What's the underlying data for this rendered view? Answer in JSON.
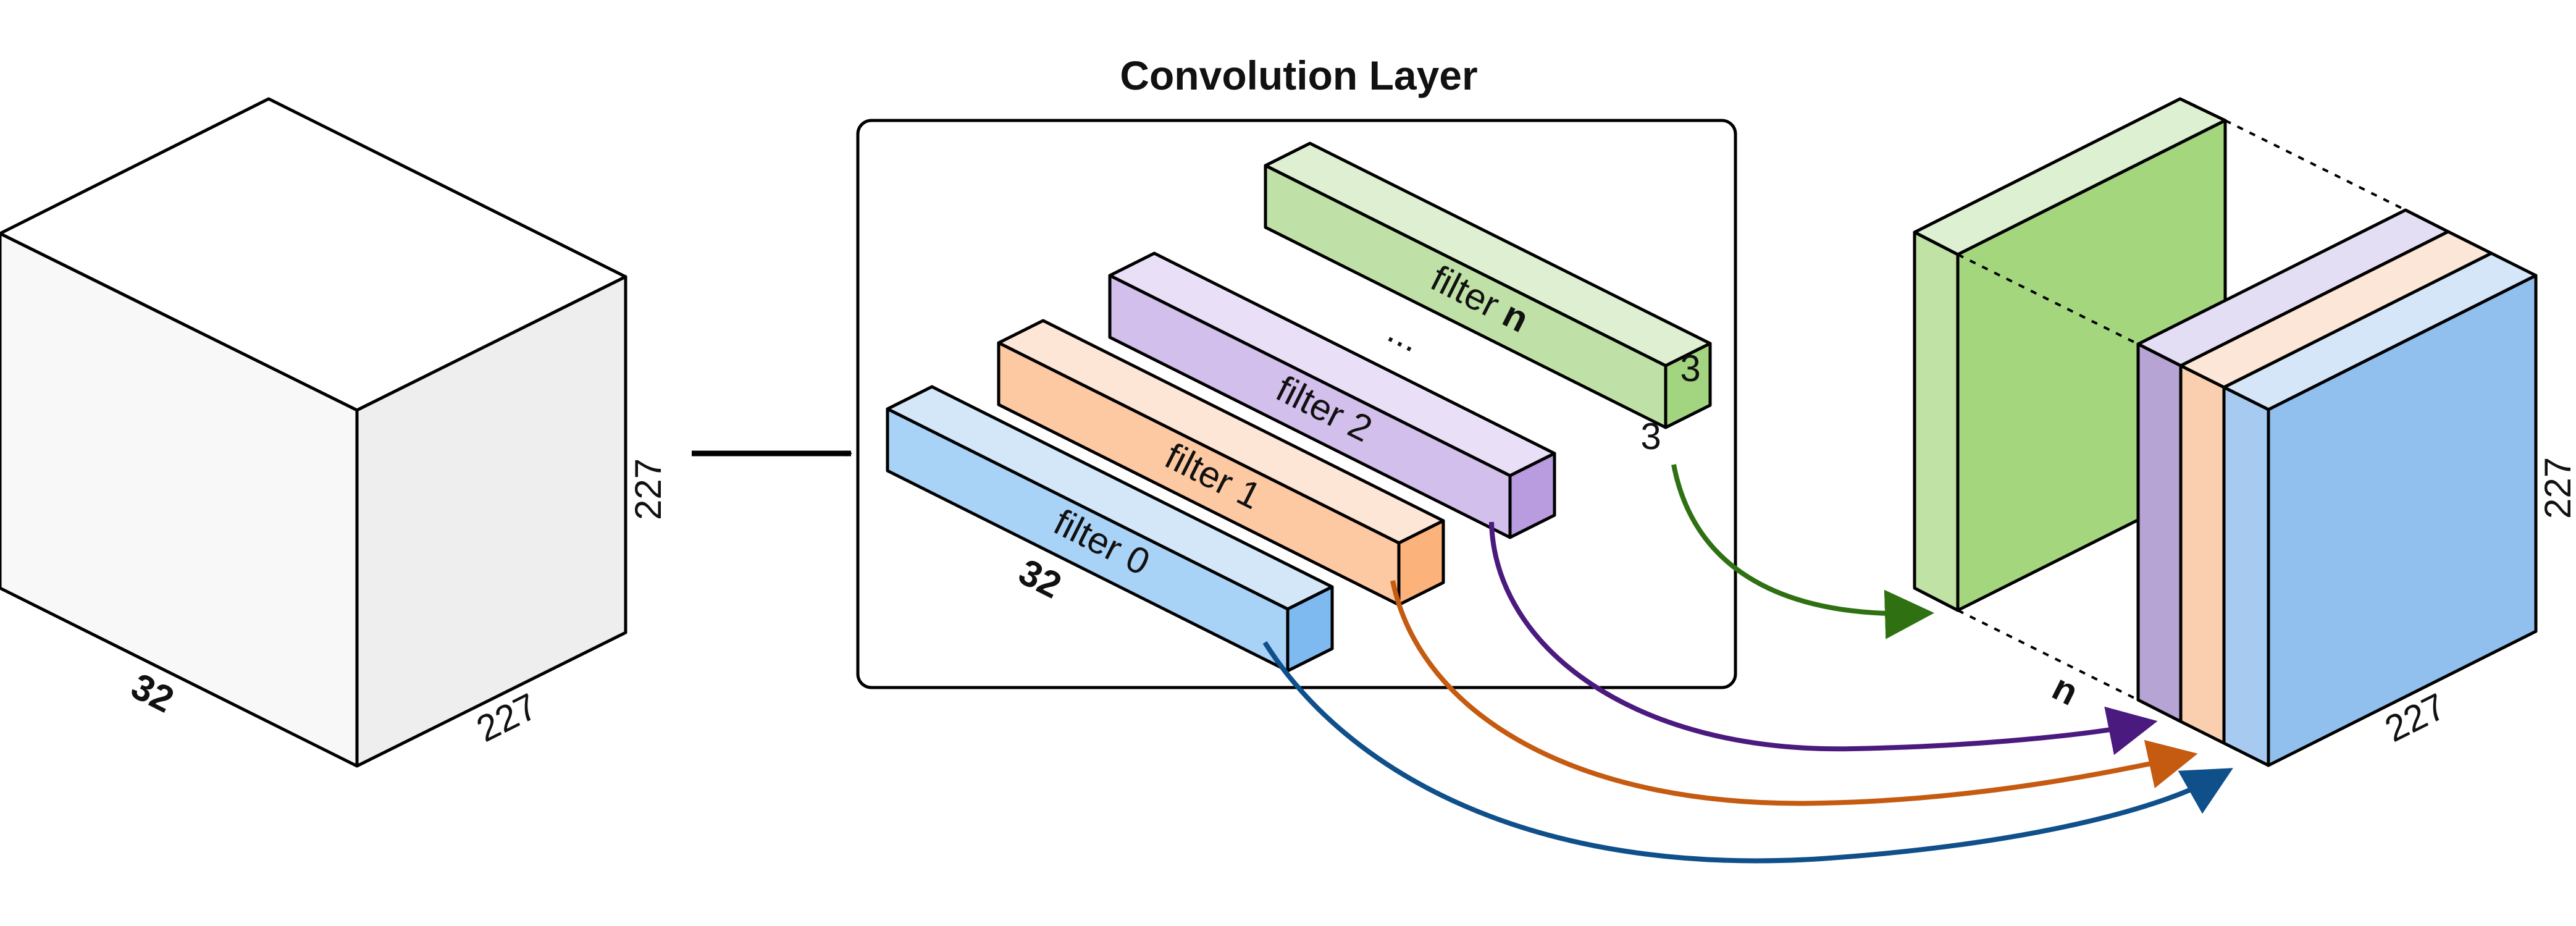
{
  "title": "Convolution Layer",
  "input_volume": {
    "depth_label": "32",
    "width_label": "227",
    "height_label": "227"
  },
  "filters": [
    {
      "label_prefix": "filter ",
      "label_suffix": "0",
      "suffix_bold": false,
      "color_front": "#a9d2f7",
      "color_top": "#d4e7f9",
      "color_end": "#7eb9ef",
      "arrow_color": "#0f4f8a"
    },
    {
      "label_prefix": "filter ",
      "label_suffix": "1",
      "suffix_bold": false,
      "color_front": "#fdc9a2",
      "color_top": "#fde6d5",
      "color_end": "#fcb27b",
      "arrow_color": "#c55a11"
    },
    {
      "label_prefix": "filter ",
      "label_suffix": "2",
      "suffix_bold": false,
      "color_front": "#d2bfec",
      "color_top": "#e9dff7",
      "color_end": "#b99bdf",
      "arrow_color": "#4b1a7e"
    },
    {
      "label_prefix": "filter ",
      "label_suffix": "n",
      "suffix_bold": true,
      "color_front": "#bfe0a6",
      "color_top": "#dff0d2",
      "color_end": "#a3d47f",
      "arrow_color": "#2e7012"
    }
  ],
  "filter_labels": {
    "depth": "32",
    "size_w": "3",
    "size_h": "3",
    "ellipsis": "..."
  },
  "output_volume": {
    "count_label": "n",
    "width_label": "227",
    "height_label": "227",
    "layer_colors": {
      "blue_front": "#92c0ee",
      "blue_top": "#d5e6f8",
      "blue_side": "#a7cbf0",
      "orange_side": "#f9cfaf",
      "orange_top": "#fbe6d8",
      "purple_side": "#b6a4d4",
      "purple_top": "#e4def4",
      "green_front": "#a3d67d",
      "green_side": "#c0e2a4",
      "green_top": "#ddf0d1"
    }
  }
}
